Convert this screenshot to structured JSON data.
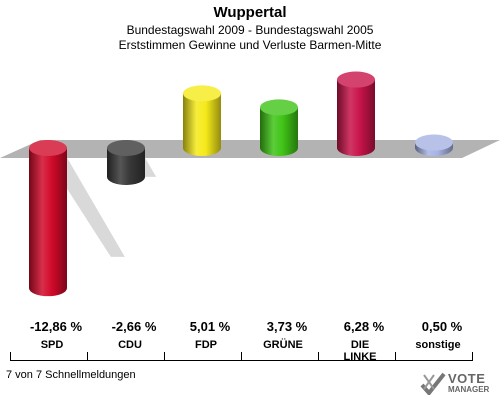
{
  "header": {
    "title": "Wuppertal",
    "subtitle1": "Bundestagswahl 2009 - Bundestagswahl 2005",
    "subtitle2": "Erststimmen Gewinne und Verluste Barmen-Mitte"
  },
  "footer": {
    "text": "7 von 7 Schnellmeldungen"
  },
  "logo": {
    "line1": "VOTE",
    "line2": "MANAGER"
  },
  "colors": {
    "plane": "#b3b3b3",
    "shadow": "#d9d9d9"
  },
  "chart_data": {
    "type": "bar",
    "categories": [
      "SPD",
      "CDU",
      "FDP",
      "GRÜNE",
      "DIE LINKE",
      "sonstige"
    ],
    "values": [
      -12.86,
      -2.66,
      5.01,
      3.73,
      6.28,
      0.5
    ],
    "value_labels": [
      "-12,86 %",
      "-2,66 %",
      "5,01 %",
      "3,73 %",
      "6,28 %",
      "0,50 %"
    ],
    "colors": [
      "#d10a2a",
      "#383838",
      "#f5ea1a",
      "#3fc416",
      "#c8144a",
      "#a6b3e4"
    ],
    "title": "Wuppertal",
    "xlabel": "",
    "ylabel": ""
  }
}
